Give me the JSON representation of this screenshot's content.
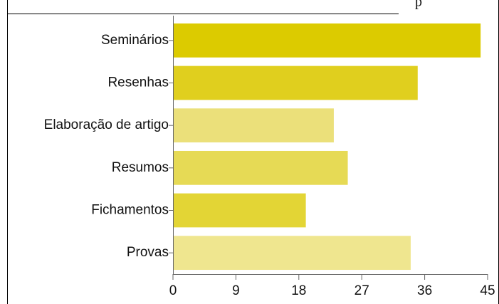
{
  "fragment": "p",
  "chart_data": {
    "type": "barh",
    "categories": [
      "Seminários",
      "Resenhas",
      "Elaboração de artigo",
      "Resumos",
      "Fichamentos",
      "Provas"
    ],
    "values": [
      44,
      35,
      23,
      25,
      19,
      34
    ],
    "colors": [
      "#dccb00",
      "#e0cf1e",
      "#ebe07a",
      "#e6da55",
      "#e3d535",
      "#efe68f"
    ],
    "xlim": [
      0,
      45
    ],
    "xticks": [
      0,
      9,
      18,
      27,
      36,
      45
    ]
  }
}
